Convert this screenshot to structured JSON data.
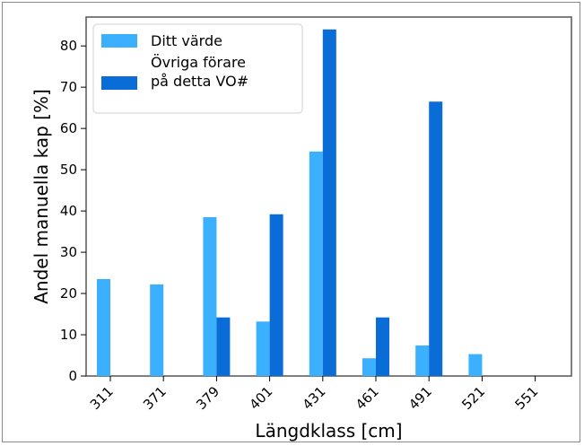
{
  "chart_data": {
    "type": "bar",
    "xlabel": "Längdklass [cm]",
    "ylabel": "Andel manuella kap [%]",
    "categories": [
      "311",
      "371",
      "379",
      "401",
      "431",
      "461",
      "491",
      "521",
      "551"
    ],
    "ylim": [
      0,
      87
    ],
    "yticks": [
      0,
      10,
      20,
      30,
      40,
      50,
      60,
      70,
      80
    ],
    "grid": false,
    "legend_position": "top-left",
    "series": [
      {
        "name": "Ditt värde",
        "color": "#3ab0ff",
        "values": [
          23.5,
          22.2,
          38.5,
          13.2,
          54.4,
          4.3,
          7.4,
          5.3,
          0
        ]
      },
      {
        "name": "Övriga förare på detta VO#",
        "color": "#0a6cd6",
        "values": [
          0,
          0,
          14.2,
          39.2,
          84.0,
          14.2,
          66.5,
          0,
          0
        ]
      }
    ],
    "legend": {
      "entries": [
        {
          "lines": [
            "Ditt värde"
          ]
        },
        {
          "lines": [
            "Övriga förare",
            "på detta VO#"
          ]
        }
      ]
    }
  }
}
